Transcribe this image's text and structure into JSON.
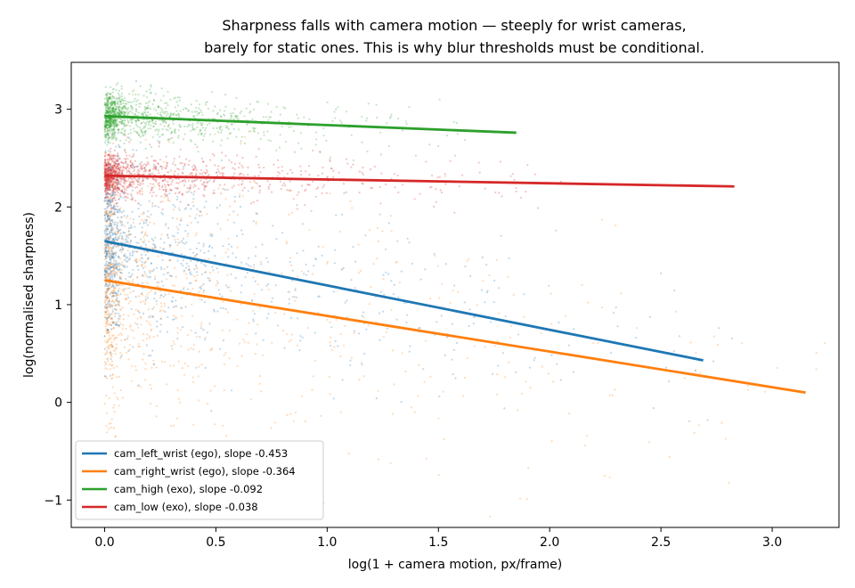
{
  "chart_data": {
    "type": "scatter",
    "title_lines": [
      "Sharpness falls with camera motion — steeply for wrist cameras,",
      "barely for static ones. This is why blur thresholds must be conditional."
    ],
    "xlabel": "log(1 + camera motion, px/frame)",
    "ylabel": "log(normalised sharpness)",
    "xlim": [
      -0.15,
      3.3
    ],
    "ylim": [
      -1.28,
      3.48
    ],
    "x_ticks": [
      0.0,
      0.5,
      1.0,
      1.5,
      2.0,
      2.5,
      3.0
    ],
    "x_tick_labels": [
      "0.0",
      "0.5",
      "1.0",
      "1.5",
      "2.0",
      "2.5",
      "3.0"
    ],
    "y_ticks": [
      -1,
      0,
      1,
      2,
      3
    ],
    "y_tick_labels": [
      "−1",
      "0",
      "1",
      "2",
      "3"
    ],
    "grid": false,
    "legend_position": "lower-left",
    "series": [
      {
        "name": "cam_left_wrist (ego), slope -0.453",
        "color": "#1f77b4",
        "fit": {
          "x": [
            0.0,
            2.69
          ],
          "y": [
            1.65,
            0.43
          ]
        },
        "scatter_profile": {
          "x_max": 2.7,
          "y_center": 1.65,
          "y_spread": 0.45
        }
      },
      {
        "name": "cam_right_wrist (ego), slope -0.364",
        "color": "#ff7f0e",
        "fit": {
          "x": [
            0.0,
            3.15
          ],
          "y": [
            1.25,
            0.1
          ]
        },
        "scatter_profile": {
          "x_max": 3.15,
          "y_center": 1.25,
          "y_spread": 0.65
        }
      },
      {
        "name": "cam_high (exo), slope -0.092",
        "color": "#2ca02c",
        "fit": {
          "x": [
            0.0,
            1.85
          ],
          "y": [
            2.93,
            2.76
          ]
        },
        "scatter_profile": {
          "x_max": 1.6,
          "y_center": 2.93,
          "y_spread": 0.12
        }
      },
      {
        "name": "cam_low (exo), slope -0.038",
        "color": "#d62728",
        "fit": {
          "x": [
            0.0,
            2.83
          ],
          "y": [
            2.32,
            2.21
          ]
        },
        "scatter_profile": {
          "x_max": 2.1,
          "y_center": 2.3,
          "y_spread": 0.12
        }
      }
    ]
  }
}
